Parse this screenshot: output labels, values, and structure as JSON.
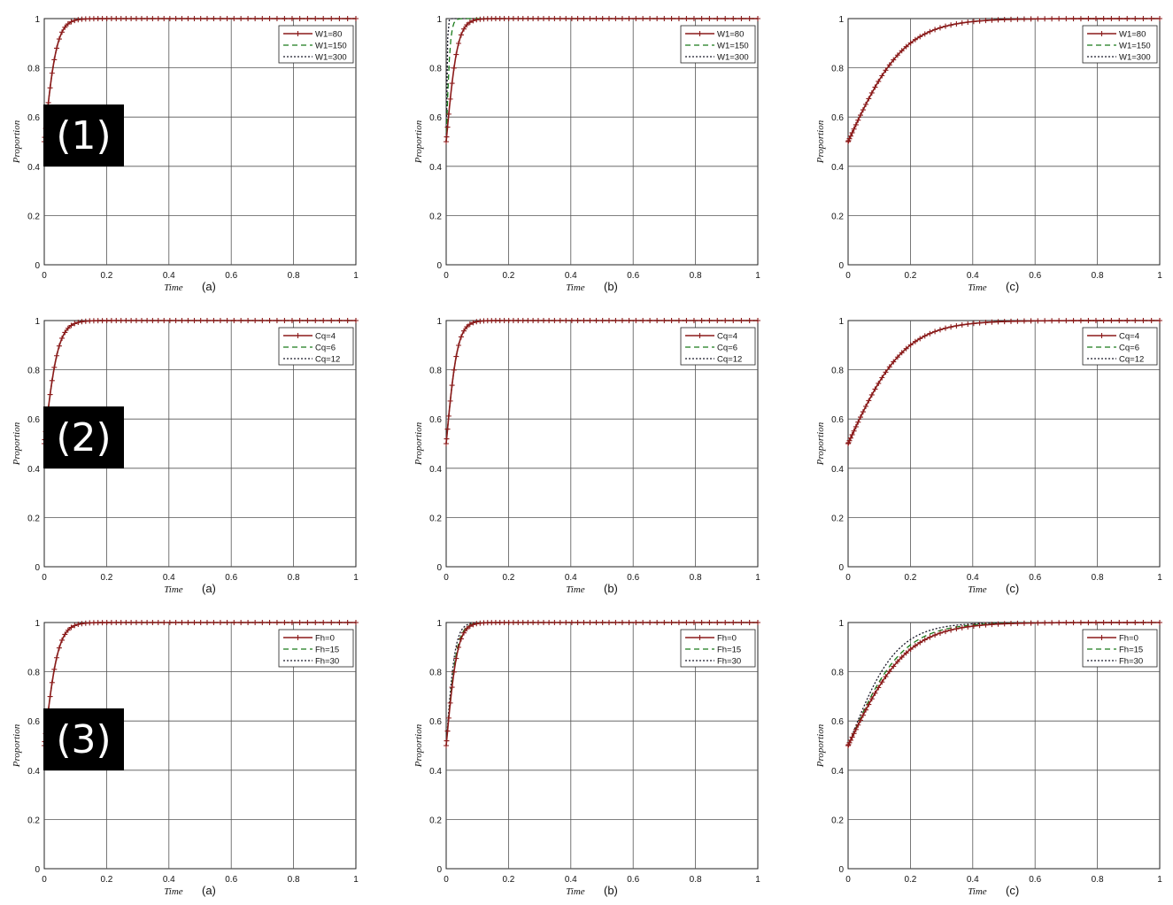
{
  "row_labels": [
    "(1)",
    "(2)",
    "(3)"
  ],
  "colors": {
    "series1": "#8b1a1a",
    "series2": "#1a7a1a",
    "series3": "#1a1a2a",
    "grid": "#555555"
  },
  "chart_data": [
    {
      "type": "line",
      "row": "(1)",
      "panel": "(a)",
      "xlabel": "Time",
      "ylabel": "Proportion",
      "xlim": [
        0,
        1
      ],
      "ylim": [
        0,
        1
      ],
      "xticks": [
        "0",
        "0.2",
        "0.4",
        "0.6",
        "0.8",
        "1"
      ],
      "yticks": [
        "0",
        "0.2",
        "0.4",
        "0.6",
        "0.8",
        "1"
      ],
      "grid": true,
      "legend": "top-right",
      "series": [
        {
          "name": "W1=80",
          "y0": 0.5,
          "rate": 50
        },
        {
          "name": "W1=150",
          "y0": 0.5,
          "rate": 50
        },
        {
          "name": "W1=300",
          "y0": 0.5,
          "rate": 50
        }
      ]
    },
    {
      "type": "line",
      "row": "(1)",
      "panel": "(b)",
      "xlabel": "Time",
      "ylabel": "Proportion",
      "xlim": [
        0,
        1
      ],
      "ylim": [
        0,
        1
      ],
      "xticks": [
        "0",
        "0.2",
        "0.4",
        "0.6",
        "0.8",
        "1"
      ],
      "yticks": [
        "0",
        "0.2",
        "0.4",
        "0.6",
        "0.8",
        "1"
      ],
      "grid": true,
      "legend": "top-right",
      "series": [
        {
          "name": "W1=80",
          "y0": 0.5,
          "rate": 55
        },
        {
          "name": "W1=150",
          "y0": 0.5,
          "rate": 160
        },
        {
          "name": "W1=300",
          "y0": 0.5,
          "rate": 500
        }
      ]
    },
    {
      "type": "line",
      "row": "(1)",
      "panel": "(c)",
      "xlabel": "Time",
      "ylabel": "Proportion",
      "xlim": [
        0,
        1
      ],
      "ylim": [
        0,
        1
      ],
      "xticks": [
        "0",
        "0.2",
        "0.4",
        "0.6",
        "0.8",
        "1"
      ],
      "yticks": [
        "0",
        "0.2",
        "0.4",
        "0.6",
        "0.8",
        "1"
      ],
      "grid": true,
      "legend": "top-right",
      "series": [
        {
          "name": "W1=80",
          "y0": 0.5,
          "rate": 11
        },
        {
          "name": "W1=150",
          "y0": 0.5,
          "rate": 11
        },
        {
          "name": "W1=300",
          "y0": 0.5,
          "rate": 11
        }
      ]
    },
    {
      "type": "line",
      "row": "(2)",
      "panel": "(a)",
      "xlabel": "Time",
      "ylabel": "Proportion",
      "xlim": [
        0,
        1
      ],
      "ylim": [
        0,
        1
      ],
      "xticks": [
        "0",
        "0.2",
        "0.4",
        "0.6",
        "0.8",
        "1"
      ],
      "yticks": [
        "0",
        "0.2",
        "0.4",
        "0.6",
        "0.8",
        "1"
      ],
      "grid": true,
      "legend": "top-right",
      "series": [
        {
          "name": "Cq=4",
          "y0": 0.5,
          "rate": 45
        },
        {
          "name": "Cq=6",
          "y0": 0.5,
          "rate": 45
        },
        {
          "name": "Cq=12",
          "y0": 0.5,
          "rate": 45
        }
      ]
    },
    {
      "type": "line",
      "row": "(2)",
      "panel": "(b)",
      "xlabel": "Time",
      "ylabel": "Proportion",
      "xlim": [
        0,
        1
      ],
      "ylim": [
        0,
        1
      ],
      "xticks": [
        "0",
        "0.2",
        "0.4",
        "0.6",
        "0.8",
        "1"
      ],
      "yticks": [
        "0",
        "0.2",
        "0.4",
        "0.6",
        "0.8",
        "1"
      ],
      "grid": true,
      "legend": "top-right",
      "series": [
        {
          "name": "Cq=4",
          "y0": 0.5,
          "rate": 55
        },
        {
          "name": "Cq=6",
          "y0": 0.5,
          "rate": 55
        },
        {
          "name": "Cq=12",
          "y0": 0.5,
          "rate": 55
        }
      ]
    },
    {
      "type": "line",
      "row": "(2)",
      "panel": "(c)",
      "xlabel": "Time",
      "ylabel": "Proportion",
      "xlim": [
        0,
        1
      ],
      "ylim": [
        0,
        1
      ],
      "xticks": [
        "0",
        "0.2",
        "0.4",
        "0.6",
        "0.8",
        "1"
      ],
      "yticks": [
        "0",
        "0.2",
        "0.4",
        "0.6",
        "0.8",
        "1"
      ],
      "grid": true,
      "legend": "top-right",
      "series": [
        {
          "name": "Cq=4",
          "y0": 0.5,
          "rate": 11
        },
        {
          "name": "Cq=6",
          "y0": 0.5,
          "rate": 11
        },
        {
          "name": "Cq=12",
          "y0": 0.5,
          "rate": 11
        }
      ]
    },
    {
      "type": "line",
      "row": "(3)",
      "panel": "(a)",
      "xlabel": "Time",
      "ylabel": "Proportion",
      "xlim": [
        0,
        1
      ],
      "ylim": [
        0,
        1
      ],
      "xticks": [
        "0",
        "0.2",
        "0.4",
        "0.6",
        "0.8",
        "1"
      ],
      "yticks": [
        "0",
        "0.2",
        "0.4",
        "0.6",
        "0.8",
        "1"
      ],
      "grid": true,
      "legend": "top-right",
      "series": [
        {
          "name": "Fh=0",
          "y0": 0.5,
          "rate": 45
        },
        {
          "name": "Fh=15",
          "y0": 0.5,
          "rate": 45
        },
        {
          "name": "Fh=30",
          "y0": 0.5,
          "rate": 45
        }
      ]
    },
    {
      "type": "line",
      "row": "(3)",
      "panel": "(b)",
      "xlabel": "Time",
      "ylabel": "Proportion",
      "xlim": [
        0,
        1
      ],
      "ylim": [
        0,
        1
      ],
      "xticks": [
        "0",
        "0.2",
        "0.4",
        "0.6",
        "0.8",
        "1"
      ],
      "yticks": [
        "0",
        "0.2",
        "0.4",
        "0.6",
        "0.8",
        "1"
      ],
      "grid": true,
      "legend": "top-right",
      "series": [
        {
          "name": "Fh=0",
          "y0": 0.5,
          "rate": 55
        },
        {
          "name": "Fh=15",
          "y0": 0.5,
          "rate": 60
        },
        {
          "name": "Fh=30",
          "y0": 0.5,
          "rate": 70
        }
      ]
    },
    {
      "type": "line",
      "row": "(3)",
      "panel": "(c)",
      "xlabel": "Time",
      "ylabel": "Proportion",
      "xlim": [
        0,
        1
      ],
      "ylim": [
        0,
        1
      ],
      "xticks": [
        "0",
        "0.2",
        "0.4",
        "0.6",
        "0.8",
        "1"
      ],
      "yticks": [
        "0",
        "0.2",
        "0.4",
        "0.6",
        "0.8",
        "1"
      ],
      "grid": true,
      "legend": "top-right",
      "series": [
        {
          "name": "Fh=0",
          "y0": 0.5,
          "rate": 10.5
        },
        {
          "name": "Fh=15",
          "y0": 0.5,
          "rate": 11.5
        },
        {
          "name": "Fh=30",
          "y0": 0.5,
          "rate": 13
        }
      ]
    }
  ]
}
